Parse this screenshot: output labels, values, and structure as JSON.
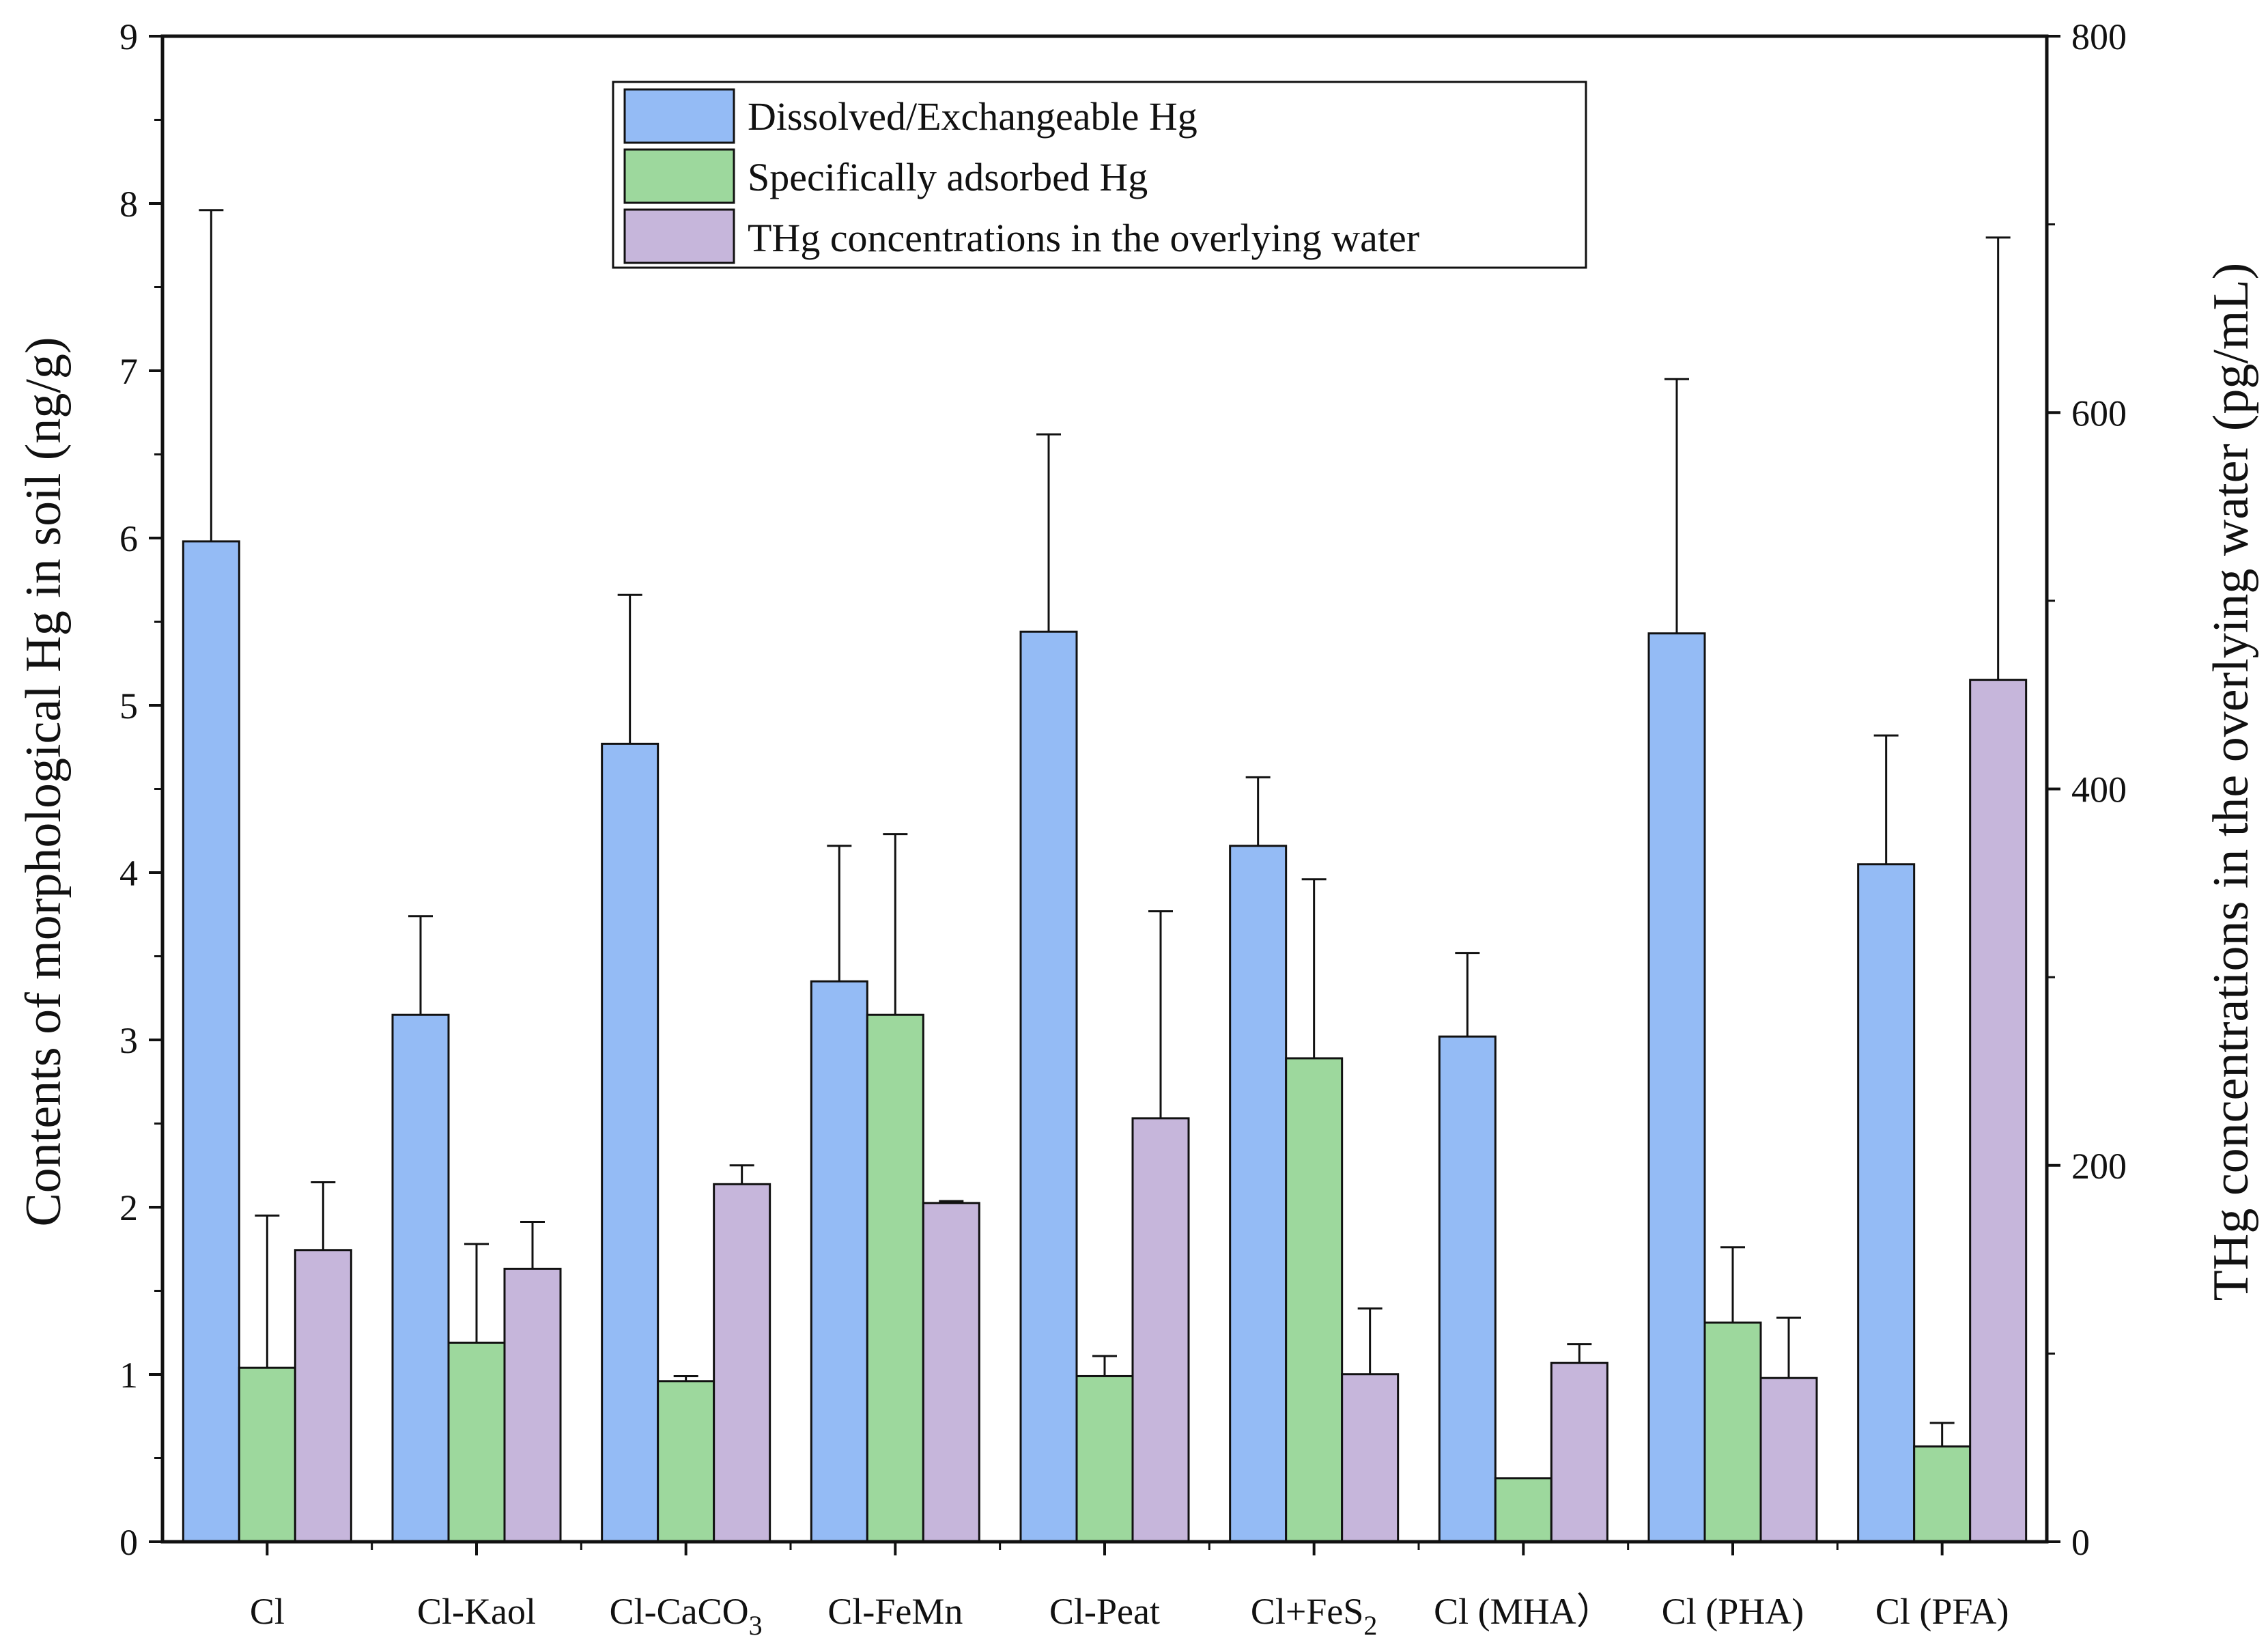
{
  "chart_data": {
    "type": "bar",
    "categories": [
      "Cl",
      "Cl-Kaol",
      "Cl-CaCO3",
      "Cl-FeMn",
      "Cl-Peat",
      "Cl+FeS2",
      "Cl (MHA）",
      "Cl (PHA)",
      "Cl (PFA)"
    ],
    "category_labels": [
      {
        "base": "Cl",
        "sub": ""
      },
      {
        "base": "Cl-Kaol",
        "sub": ""
      },
      {
        "base": "Cl-CaCO",
        "sub": "3"
      },
      {
        "base": "Cl-FeMn",
        "sub": ""
      },
      {
        "base": "Cl-Peat",
        "sub": ""
      },
      {
        "base": "Cl+FeS",
        "sub": "2"
      },
      {
        "base": "Cl (MHA）",
        "sub": ""
      },
      {
        "base": "Cl (PHA)",
        "sub": ""
      },
      {
        "base": "Cl (PFA)",
        "sub": ""
      }
    ],
    "series": [
      {
        "name": "Dissolved/Exchangeable Hg",
        "axis": "left",
        "color": "#94bbf5",
        "values": [
          5.98,
          3.15,
          4.77,
          3.35,
          5.44,
          4.16,
          3.02,
          5.43,
          4.05
        ],
        "errors": [
          1.98,
          0.59,
          0.89,
          0.81,
          1.18,
          0.41,
          0.5,
          1.52,
          0.77
        ]
      },
      {
        "name": "Specifically adsorbed Hg",
        "axis": "left",
        "color": "#9dd89d",
        "values": [
          1.04,
          1.19,
          0.96,
          3.15,
          0.99,
          2.89,
          0.38,
          1.31,
          0.57
        ],
        "errors": [
          0.91,
          0.59,
          0.03,
          1.08,
          0.12,
          1.07,
          0,
          0.45,
          0.14
        ]
      },
      {
        "name": "THg concentrations in the overlying water",
        "axis": "right",
        "color": "#c6b6db",
        "values": [
          155,
          145,
          190,
          180,
          225,
          89,
          95,
          87,
          458
        ],
        "errors": [
          36,
          25,
          10,
          1,
          110,
          35,
          10,
          32,
          235
        ]
      }
    ],
    "ylabel": "Contents of morphological Hg in soil (ng/g)",
    "y2label": "THg concentrations in the overlying water (pg/mL)",
    "ylim": [
      0,
      9
    ],
    "y2lim": [
      0,
      800
    ],
    "yticks": [
      "0",
      "1",
      "2",
      "3",
      "4",
      "5",
      "6",
      "7",
      "8",
      "9"
    ],
    "y2ticks": [
      "0",
      "200",
      "400",
      "600",
      "800"
    ],
    "legend_position": "top-center",
    "grid": false
  }
}
